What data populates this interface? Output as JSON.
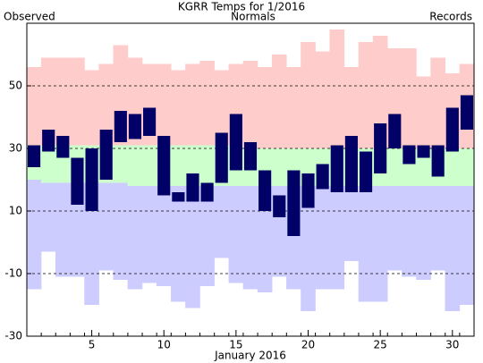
{
  "chart_data": {
    "type": "temperature-range",
    "title": "KGRR Temps for 1/2016",
    "xlabel": "January 2016",
    "x": [
      1,
      2,
      3,
      4,
      5,
      6,
      7,
      8,
      9,
      10,
      11,
      12,
      13,
      14,
      15,
      16,
      17,
      18,
      19,
      20,
      21,
      22,
      23,
      24,
      25,
      26,
      27,
      28,
      29,
      30,
      31
    ],
    "xlim": [
      0.5,
      31.5
    ],
    "xticks": [
      5,
      10,
      15,
      20,
      25,
      30
    ],
    "ylim": [
      -30,
      70
    ],
    "yticks": [
      -30,
      -10,
      10,
      30,
      50
    ],
    "grid": true,
    "series": [
      {
        "name": "Observed",
        "color": "#000066",
        "label_color": "#000080",
        "high": [
          31,
          36,
          34,
          27,
          30,
          36,
          42,
          41,
          43,
          34,
          16,
          22,
          19,
          35,
          41,
          32,
          23,
          15,
          23,
          22,
          25,
          31,
          34,
          29,
          38,
          41,
          31,
          31,
          31,
          43,
          47
        ],
        "low": [
          24,
          29,
          27,
          12,
          10,
          20,
          32,
          33,
          34,
          15,
          13,
          13,
          13,
          19,
          23,
          23,
          10,
          8,
          2,
          11,
          17,
          16,
          16,
          16,
          22,
          30,
          25,
          27,
          21,
          29,
          36
        ]
      },
      {
        "name": "Normals",
        "color": "#ccffcc",
        "label_color": "#008000",
        "high": [
          31,
          31,
          31,
          31,
          31,
          31,
          31,
          31,
          31,
          31,
          31,
          31,
          31,
          31,
          31,
          30,
          30,
          30,
          30,
          30,
          30,
          30,
          30,
          30,
          30,
          30,
          30,
          30,
          30,
          30,
          30
        ],
        "low": [
          20,
          19,
          19,
          19,
          19,
          19,
          19,
          18,
          18,
          18,
          18,
          18,
          18,
          18,
          18,
          18,
          18,
          18,
          18,
          18,
          18,
          18,
          18,
          18,
          18,
          18,
          18,
          18,
          18,
          18,
          18
        ]
      },
      {
        "name": "Records",
        "color": "#ffcccc",
        "low_color": "#ccccff",
        "label_color": "#cc88dd",
        "high": [
          56,
          59,
          59,
          59,
          55,
          57,
          63,
          59,
          57,
          57,
          55,
          57,
          58,
          55,
          57,
          58,
          56,
          60,
          56,
          64,
          61,
          68,
          56,
          64,
          66,
          62,
          62,
          53,
          59,
          54,
          57
        ],
        "low": [
          -15,
          -3,
          -11,
          -11,
          -20,
          -9,
          -12,
          -15,
          -13,
          -14,
          -19,
          -21,
          -14,
          -5,
          -13,
          -15,
          -16,
          -11,
          -15,
          -22,
          -15,
          -15,
          -6,
          -19,
          -19,
          -9,
          -11,
          -12,
          -9,
          -22,
          -20
        ]
      }
    ]
  }
}
